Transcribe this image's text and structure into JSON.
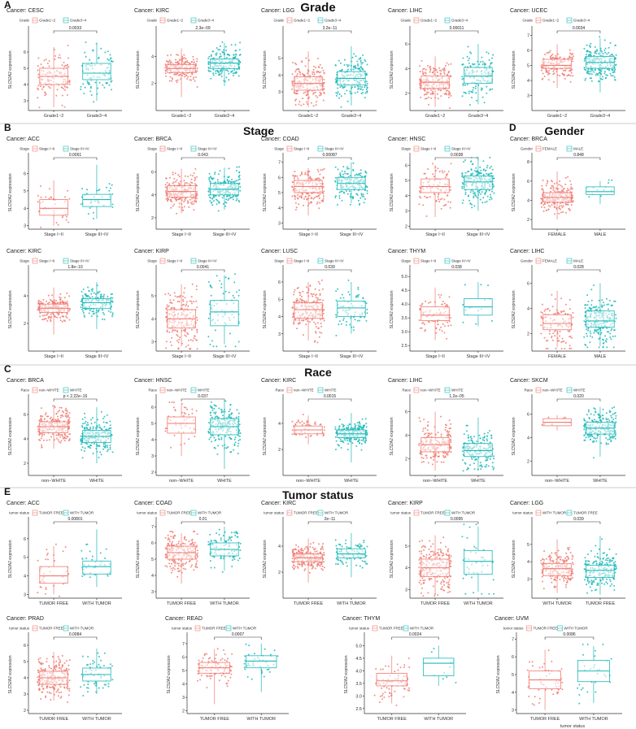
{
  "colors": {
    "group1": "#f07b72",
    "group2": "#1fb8b8"
  },
  "sections": [
    {
      "letter": "A",
      "title": "Grade"
    },
    {
      "letter": "B",
      "title": "Stage"
    },
    {
      "letter": "D",
      "title": "Gender"
    },
    {
      "letter": "C",
      "title": "Race"
    },
    {
      "letter": "E",
      "title": "Tumor status"
    }
  ],
  "y_label": "SLC52A2 expression",
  "chart_data": [
    {
      "type": "box",
      "title": "Cancer: CESC",
      "legend_title": "Grade",
      "categories": [
        "Grade1~2",
        "Grade3~4"
      ],
      "pvalue": "0.0033",
      "yticks": [
        3,
        4,
        5,
        6
      ],
      "ylim": [
        2.4,
        7.4
      ],
      "boxes": [
        {
          "q1": 4.0,
          "med": 4.5,
          "q3": 5.0,
          "lo": 2.6,
          "hi": 6.3,
          "n": 130
        },
        {
          "q1": 4.3,
          "med": 4.7,
          "q3": 5.3,
          "lo": 3.0,
          "hi": 6.5,
          "n": 90
        }
      ]
    },
    {
      "type": "box",
      "title": "Cancer: KIRC",
      "legend_title": "Grade",
      "categories": [
        "Grade1~2",
        "Grade3~4"
      ],
      "pvalue": "2.3e−09",
      "yticks": [
        2,
        4
      ],
      "ylim": [
        0,
        6
      ],
      "boxes": [
        {
          "q1": 2.8,
          "med": 3.1,
          "q3": 3.4,
          "lo": 1.0,
          "hi": 4.6,
          "n": 180
        },
        {
          "q1": 3.1,
          "med": 3.5,
          "q3": 3.8,
          "lo": 1.8,
          "hi": 5.0,
          "n": 190
        }
      ]
    },
    {
      "type": "box",
      "title": "Cancer: LGG",
      "legend_title": "Grade",
      "categories": [
        "Grade1~2",
        "Grade3~4"
      ],
      "pvalue": "3.2e−11",
      "yticks": [
        3,
        4,
        5
      ],
      "ylim": [
        1.9,
        6.7
      ],
      "boxes": [
        {
          "q1": 3.1,
          "med": 3.5,
          "q3": 3.9,
          "lo": 2.1,
          "hi": 5.4,
          "n": 200
        },
        {
          "q1": 3.4,
          "med": 3.8,
          "q3": 4.2,
          "lo": 2.2,
          "hi": 5.7,
          "n": 200
        }
      ]
    },
    {
      "type": "box",
      "title": "Cancer: LIHC",
      "legend_title": "Grade",
      "categories": [
        "Grade1~2",
        "Grade3~4"
      ],
      "pvalue": "0.00011",
      "yticks": [
        2,
        4,
        6
      ],
      "ylim": [
        0.6,
        7.2
      ],
      "boxes": [
        {
          "q1": 2.4,
          "med": 2.9,
          "q3": 3.4,
          "lo": 0.9,
          "hi": 5.0,
          "n": 200
        },
        {
          "q1": 2.8,
          "med": 3.4,
          "q3": 4.1,
          "lo": 1.1,
          "hi": 6.0,
          "n": 140
        }
      ]
    },
    {
      "type": "box",
      "title": "Cancer: UCEC",
      "legend_title": "Grade",
      "categories": [
        "Grade1~2",
        "Grade3~4"
      ],
      "pvalue": "0.0034",
      "yticks": [
        3,
        4,
        5,
        6,
        7
      ],
      "ylim": [
        2.0,
        7.4
      ],
      "boxes": [
        {
          "q1": 4.8,
          "med": 5.0,
          "q3": 5.4,
          "lo": 3.5,
          "hi": 6.4,
          "n": 160
        },
        {
          "q1": 4.8,
          "med": 5.2,
          "q3": 5.6,
          "lo": 3.2,
          "hi": 6.8,
          "n": 220
        }
      ]
    },
    {
      "type": "box",
      "title": "Cancer: ACC",
      "legend_title": "Stage",
      "categories": [
        "Stage I~II",
        "Stage III~IV"
      ],
      "pvalue": "0.0061",
      "yticks": [
        3,
        4,
        5,
        6
      ],
      "ylim": [
        2.8,
        7.0
      ],
      "boxes": [
        {
          "q1": 3.6,
          "med": 4.0,
          "q3": 4.5,
          "lo": 3.0,
          "hi": 5.6,
          "n": 40
        },
        {
          "q1": 4.1,
          "med": 4.5,
          "q3": 4.8,
          "lo": 3.4,
          "hi": 6.5,
          "n": 35
        }
      ]
    },
    {
      "type": "box",
      "title": "Cancer: BRCA",
      "legend_title": "Stage",
      "categories": [
        "Stage I~II",
        "Stage III~IV"
      ],
      "pvalue": "0.043",
      "yticks": [
        2,
        4,
        6
      ],
      "ylim": [
        1.0,
        7.4
      ],
      "boxes": [
        {
          "q1": 3.8,
          "med": 4.3,
          "q3": 4.8,
          "lo": 2.4,
          "hi": 6.3,
          "n": 400
        },
        {
          "q1": 4.0,
          "med": 4.5,
          "q3": 5.0,
          "lo": 2.7,
          "hi": 6.4,
          "n": 200
        }
      ]
    },
    {
      "type": "box",
      "title": "Cancer: COAD",
      "legend_title": "Stage",
      "categories": [
        "Stage I~II",
        "Stage III~IV"
      ],
      "pvalue": "0.00087",
      "yticks": [
        3,
        4,
        5,
        6,
        7
      ],
      "ylim": [
        2.6,
        7.4
      ],
      "boxes": [
        {
          "q1": 5.0,
          "med": 5.4,
          "q3": 5.8,
          "lo": 3.5,
          "hi": 6.6,
          "n": 200
        },
        {
          "q1": 5.2,
          "med": 5.6,
          "q3": 6.0,
          "lo": 4.3,
          "hi": 7.0,
          "n": 180
        }
      ]
    },
    {
      "type": "box",
      "title": "Cancer: HNSC",
      "legend_title": "Stage",
      "categories": [
        "Stage I~II",
        "Stage III~IV"
      ],
      "pvalue": "0.0038",
      "yticks": [
        2,
        3,
        4,
        5,
        6
      ],
      "ylim": [
        1.8,
        6.6
      ],
      "boxes": [
        {
          "q1": 4.2,
          "med": 4.6,
          "q3": 5.1,
          "lo": 2.6,
          "hi": 6.0,
          "n": 100
        },
        {
          "q1": 4.4,
          "med": 4.9,
          "q3": 5.3,
          "lo": 3.0,
          "hi": 6.4,
          "n": 300
        }
      ]
    },
    {
      "type": "box",
      "title": "Cancer: BRCA",
      "legend_title": "Gender",
      "categories": [
        "FEMALE",
        "MALE"
      ],
      "pvalue": "0.848",
      "yticks": [
        2,
        4,
        6,
        8
      ],
      "ylim": [
        1.0,
        8.6
      ],
      "boxes": [
        {
          "q1": 3.8,
          "med": 4.3,
          "q3": 4.8,
          "lo": 2.0,
          "hi": 7.0,
          "n": 500
        },
        {
          "q1": 4.6,
          "med": 4.9,
          "q3": 5.4,
          "lo": 3.6,
          "hi": 6.0,
          "n": 12
        }
      ]
    },
    {
      "type": "box",
      "title": "Cancer: KIRC",
      "legend_title": "Stage",
      "categories": [
        "Stage I~II",
        "Stage III~IV"
      ],
      "pvalue": "1.8e−10",
      "yticks": [
        2,
        4
      ],
      "ylim": [
        0,
        6
      ],
      "boxes": [
        {
          "q1": 2.8,
          "med": 3.1,
          "q3": 3.4,
          "lo": 1.2,
          "hi": 4.6,
          "n": 200
        },
        {
          "q1": 3.1,
          "med": 3.5,
          "q3": 3.8,
          "lo": 1.6,
          "hi": 5.0,
          "n": 150
        }
      ]
    },
    {
      "type": "box",
      "title": "Cancer: KIRP",
      "legend_title": "Stage",
      "categories": [
        "Stage I~II",
        "Stage III~IV"
      ],
      "pvalue": "0.0041",
      "yticks": [
        3,
        4,
        5
      ],
      "ylim": [
        2.6,
        6.2
      ],
      "boxes": [
        {
          "q1": 3.6,
          "med": 4.0,
          "q3": 4.4,
          "lo": 2.8,
          "hi": 5.5,
          "n": 200
        },
        {
          "q1": 3.7,
          "med": 4.3,
          "q3": 4.8,
          "lo": 2.9,
          "hi": 5.9,
          "n": 70
        }
      ]
    },
    {
      "type": "box",
      "title": "Cancer: LUSC",
      "legend_title": "Stage",
      "categories": [
        "Stage I~II",
        "Stage III~IV"
      ],
      "pvalue": "0.039",
      "yticks": [
        3,
        4,
        5,
        6
      ],
      "ylim": [
        2.0,
        6.8
      ],
      "boxes": [
        {
          "q1": 3.9,
          "med": 4.4,
          "q3": 4.8,
          "lo": 2.6,
          "hi": 6.0,
          "n": 300
        },
        {
          "q1": 4.0,
          "med": 4.5,
          "q3": 4.9,
          "lo": 3.0,
          "hi": 6.0,
          "n": 80
        }
      ]
    },
    {
      "type": "box",
      "title": "Cancer: THYM",
      "legend_title": "Stage",
      "categories": [
        "Stage I~II",
        "Stage III~IV"
      ],
      "pvalue": "0.038",
      "yticks": [
        2.5,
        3.0,
        3.5,
        4.0,
        4.5,
        5.0
      ],
      "ylim": [
        2.3,
        5.3
      ],
      "boxes": [
        {
          "q1": 3.4,
          "med": 3.6,
          "q3": 3.9,
          "lo": 2.7,
          "hi": 4.6,
          "n": 80
        },
        {
          "q1": 3.6,
          "med": 3.9,
          "q3": 4.2,
          "lo": 3.2,
          "hi": 4.8,
          "n": 15
        }
      ]
    },
    {
      "type": "box",
      "title": "Cancer: LIHC",
      "legend_title": "Gender",
      "categories": [
        "FEMALE",
        "MALE"
      ],
      "pvalue": "0.028",
      "yticks": [
        2,
        4,
        6
      ],
      "ylim": [
        0.6,
        7.2
      ],
      "boxes": [
        {
          "q1": 2.3,
          "med": 2.8,
          "q3": 3.5,
          "lo": 0.9,
          "hi": 5.4,
          "n": 120
        },
        {
          "q1": 2.5,
          "med": 3.0,
          "q3": 3.8,
          "lo": 1.0,
          "hi": 6.0,
          "n": 250
        }
      ]
    },
    {
      "type": "box",
      "title": "Cancer: BRCA",
      "legend_title": "Race",
      "categories": [
        "non−WHITE",
        "WHITE"
      ],
      "pvalue": "p < 2.22e−16",
      "yticks": [
        2,
        4,
        6
      ],
      "ylim": [
        1.0,
        7.4
      ],
      "boxes": [
        {
          "q1": 4.5,
          "med": 5.0,
          "q3": 5.4,
          "lo": 3.2,
          "hi": 6.6,
          "n": 250
        },
        {
          "q1": 3.7,
          "med": 4.2,
          "q3": 4.7,
          "lo": 2.0,
          "hi": 6.6,
          "n": 700
        }
      ]
    },
    {
      "type": "box",
      "title": "Cancer: HNSC",
      "legend_title": "Race",
      "categories": [
        "non−WHITE",
        "WHITE"
      ],
      "pvalue": "0.037",
      "yticks": [
        2,
        3,
        4,
        5,
        6
      ],
      "ylim": [
        1.8,
        6.6
      ],
      "boxes": [
        {
          "q1": 4.4,
          "med": 5.0,
          "q3": 5.4,
          "lo": 3.0,
          "hi": 6.2,
          "n": 50
        },
        {
          "q1": 4.3,
          "med": 4.8,
          "q3": 5.3,
          "lo": 2.2,
          "hi": 6.5,
          "n": 400
        }
      ]
    },
    {
      "type": "box",
      "title": "Cancer: KIRC",
      "legend_title": "Race",
      "categories": [
        "non−WHITE",
        "WHITE"
      ],
      "pvalue": "0.0015",
      "yticks": [
        2,
        4
      ],
      "ylim": [
        0,
        6
      ],
      "boxes": [
        {
          "q1": 3.2,
          "med": 3.5,
          "q3": 3.8,
          "lo": 2.4,
          "hi": 4.6,
          "n": 50
        },
        {
          "q1": 2.9,
          "med": 3.2,
          "q3": 3.5,
          "lo": 1.0,
          "hi": 4.8,
          "n": 400
        }
      ]
    },
    {
      "type": "box",
      "title": "Cancer: LIHC",
      "legend_title": "Race",
      "categories": [
        "non−WHITE",
        "WHITE"
      ],
      "pvalue": "1.2e−05",
      "yticks": [
        2,
        4,
        6
      ],
      "ylim": [
        0.6,
        7.2
      ],
      "boxes": [
        {
          "q1": 2.6,
          "med": 3.2,
          "q3": 3.8,
          "lo": 1.0,
          "hi": 6.0,
          "n": 180
        },
        {
          "q1": 2.2,
          "med": 2.7,
          "q3": 3.3,
          "lo": 1.0,
          "hi": 5.5,
          "n": 180
        }
      ]
    },
    {
      "type": "box",
      "title": "Cancer: SKCM",
      "legend_title": "Race",
      "categories": [
        "non−WHITE",
        "WHITE"
      ],
      "pvalue": "0.020",
      "yticks": [
        2,
        4,
        6
      ],
      "ylim": [
        0.8,
        7.4
      ],
      "boxes": [
        {
          "q1": 5.0,
          "med": 5.3,
          "q3": 5.6,
          "lo": 4.6,
          "hi": 5.9,
          "n": 10
        },
        {
          "q1": 4.3,
          "med": 4.8,
          "q3": 5.3,
          "lo": 2.4,
          "hi": 6.6,
          "n": 400
        }
      ]
    },
    {
      "type": "box",
      "title": "Cancer: ACC",
      "legend_title": "tumor status",
      "categories": [
        "TUMOR FREE",
        "WITH TUMOR"
      ],
      "pvalue": "0.00801",
      "yticks": [
        3,
        4,
        5,
        6
      ],
      "ylim": [
        2.8,
        7.0
      ],
      "boxes": [
        {
          "q1": 3.6,
          "med": 4.0,
          "q3": 4.5,
          "lo": 3.0,
          "hi": 5.6,
          "n": 40
        },
        {
          "q1": 4.1,
          "med": 4.5,
          "q3": 4.8,
          "lo": 3.4,
          "hi": 6.5,
          "n": 35
        }
      ]
    },
    {
      "type": "box",
      "title": "Cancer: COAD",
      "legend_title": "tumor status",
      "categories": [
        "TUMOR FREE",
        "WITH TUMOR"
      ],
      "pvalue": "0.01",
      "yticks": [
        3,
        4,
        5,
        6,
        7
      ],
      "ylim": [
        2.6,
        7.4
      ],
      "boxes": [
        {
          "q1": 5.0,
          "med": 5.4,
          "q3": 5.8,
          "lo": 3.5,
          "hi": 6.6,
          "n": 220
        },
        {
          "q1": 5.2,
          "med": 5.6,
          "q3": 6.0,
          "lo": 4.3,
          "hi": 7.0,
          "n": 100
        }
      ]
    },
    {
      "type": "box",
      "title": "Cancer: KIRC",
      "legend_title": "tumor status",
      "categories": [
        "TUMOR FREE",
        "WITH TUMOR"
      ],
      "pvalue": "2e−11",
      "yticks": [
        2,
        4
      ],
      "ylim": [
        0,
        6
      ],
      "boxes": [
        {
          "q1": 2.8,
          "med": 3.1,
          "q3": 3.4,
          "lo": 1.2,
          "hi": 4.6,
          "n": 250
        },
        {
          "q1": 3.1,
          "med": 3.4,
          "q3": 3.8,
          "lo": 1.6,
          "hi": 5.0,
          "n": 100
        }
      ]
    },
    {
      "type": "box",
      "title": "Cancer: KIRP",
      "legend_title": "tumor status",
      "categories": [
        "TUMOR FREE",
        "WITH TUMOR"
      ],
      "pvalue": "0.0095",
      "yticks": [
        3,
        4,
        5
      ],
      "ylim": [
        2.6,
        6.2
      ],
      "boxes": [
        {
          "q1": 3.6,
          "med": 4.0,
          "q3": 4.4,
          "lo": 2.8,
          "hi": 5.5,
          "n": 220
        },
        {
          "q1": 3.7,
          "med": 4.3,
          "q3": 4.8,
          "lo": 2.9,
          "hi": 5.9,
          "n": 40
        }
      ]
    },
    {
      "type": "box",
      "title": "Cancer: LGG",
      "legend_title": "tumor status",
      "categories": [
        "WITH TUMOR",
        "TUMOR FREE"
      ],
      "pvalue": "0.039",
      "yticks": [
        3,
        4,
        5
      ],
      "ylim": [
        1.9,
        6.4
      ],
      "boxes": [
        {
          "q1": 3.2,
          "med": 3.6,
          "q3": 3.9,
          "lo": 2.2,
          "hi": 5.3,
          "n": 200
        },
        {
          "q1": 3.1,
          "med": 3.5,
          "q3": 3.8,
          "lo": 2.1,
          "hi": 5.5,
          "n": 200
        }
      ]
    },
    {
      "type": "box",
      "title": "Cancer: PRAD",
      "legend_title": "tumor status",
      "categories": [
        "TUMOR FREE",
        "WITH TUMOR"
      ],
      "pvalue": "0.0084",
      "yticks": [
        2,
        3,
        4,
        5,
        6
      ],
      "ylim": [
        1.8,
        6.6
      ],
      "boxes": [
        {
          "q1": 3.6,
          "med": 4.0,
          "q3": 4.4,
          "lo": 2.6,
          "hi": 5.6,
          "n": 300
        },
        {
          "q1": 3.8,
          "med": 4.2,
          "q3": 4.6,
          "lo": 3.0,
          "hi": 5.8,
          "n": 60
        }
      ]
    },
    {
      "type": "box",
      "title": "Cancer: READ",
      "legend_title": "tumor status",
      "categories": [
        "TUMOR FREE",
        "WITH TUMOR"
      ],
      "pvalue": "0.0007",
      "yticks": [
        2,
        3,
        4,
        5,
        6,
        7
      ],
      "ylim": [
        1.8,
        7.6
      ],
      "boxes": [
        {
          "q1": 4.8,
          "med": 5.2,
          "q3": 5.6,
          "lo": 2.5,
          "hi": 6.6,
          "n": 100
        },
        {
          "q1": 5.2,
          "med": 5.7,
          "q3": 6.1,
          "lo": 3.4,
          "hi": 7.0,
          "n": 40
        }
      ]
    },
    {
      "type": "box",
      "title": "Cancer: THYM",
      "legend_title": "tumor status",
      "categories": [
        "TUMOR FREE",
        "WITH TUMOR"
      ],
      "pvalue": "0.0024",
      "yticks": [
        2.5,
        3.0,
        3.5,
        4.0,
        4.5,
        5.0
      ],
      "ylim": [
        2.3,
        5.4
      ],
      "boxes": [
        {
          "q1": 3.4,
          "med": 3.6,
          "q3": 3.9,
          "lo": 2.7,
          "hi": 4.6,
          "n": 80
        },
        {
          "q1": 3.8,
          "med": 4.3,
          "q3": 4.5,
          "lo": 3.4,
          "hi": 5.0,
          "n": 10
        }
      ]
    },
    {
      "type": "box",
      "title": "Cancer: UVM",
      "legend_title": "tumor status",
      "categories": [
        "TUMOR FREE",
        "WITH TUMOR"
      ],
      "pvalue": "0.0086",
      "yticks": [
        3,
        4,
        5,
        6,
        7
      ],
      "ylim": [
        2.8,
        7.2
      ],
      "boxes": [
        {
          "q1": 4.2,
          "med": 4.7,
          "q3": 5.2,
          "lo": 3.0,
          "hi": 6.4,
          "n": 50
        },
        {
          "q1": 4.6,
          "med": 5.2,
          "q3": 5.8,
          "lo": 3.4,
          "hi": 6.6,
          "n": 30
        }
      ]
    }
  ]
}
